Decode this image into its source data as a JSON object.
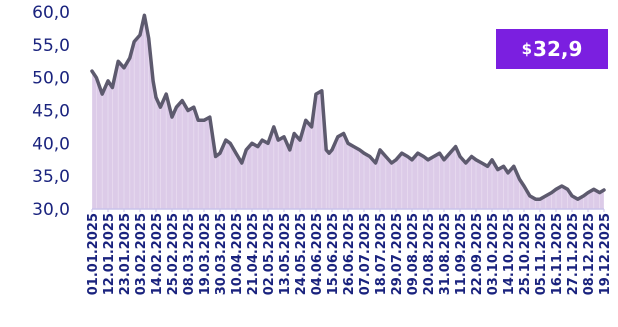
{
  "price_badge": {
    "currency": "$",
    "value": "32,9"
  },
  "chart_data": {
    "type": "area",
    "ylim": [
      30,
      60
    ],
    "yticks": [
      "30,0",
      "35,0",
      "40,0",
      "45,0",
      "50,0",
      "55,0",
      "60,0"
    ],
    "xtick_labels": [
      "01.01.2025",
      "12.01.2025",
      "23.01.2025",
      "03.02.2025",
      "14.02.2025",
      "25.02.2025",
      "08.03.2025",
      "19.03.2025",
      "30.03.2025",
      "10.04.2025",
      "21.04.2025",
      "02.05.2025",
      "13.05.2025",
      "24.05.2025",
      "04.06.2025",
      "15.06.2025",
      "26.06.2025",
      "07.07.2025",
      "18.07.2025",
      "29.07.2025",
      "09.08.2025",
      "20.08.2025",
      "31.08.2025",
      "11.09.2025",
      "22.09.2025",
      "03.10.2025",
      "14.10.2025",
      "25.10.2025",
      "05.11.2025",
      "16.11.2025",
      "27.11.2025",
      "08.12.2025",
      "19.12.2025"
    ],
    "x": [
      "2025-01-01",
      "2025-01-04",
      "2025-01-08",
      "2025-01-12",
      "2025-01-15",
      "2025-01-19",
      "2025-01-23",
      "2025-01-27",
      "2025-01-30",
      "2025-02-03",
      "2025-02-06",
      "2025-02-09",
      "2025-02-12",
      "2025-02-14",
      "2025-02-17",
      "2025-02-21",
      "2025-02-25",
      "2025-02-28",
      "2025-03-04",
      "2025-03-08",
      "2025-03-12",
      "2025-03-15",
      "2025-03-19",
      "2025-03-23",
      "2025-03-27",
      "2025-03-30",
      "2025-04-03",
      "2025-04-06",
      "2025-04-10",
      "2025-04-14",
      "2025-04-17",
      "2025-04-21",
      "2025-04-25",
      "2025-04-28",
      "2025-05-02",
      "2025-05-06",
      "2025-05-09",
      "2025-05-13",
      "2025-05-17",
      "2025-05-20",
      "2025-05-24",
      "2025-05-28",
      "2025-06-01",
      "2025-06-04",
      "2025-06-08",
      "2025-06-11",
      "2025-06-13",
      "2025-06-15",
      "2025-06-19",
      "2025-06-23",
      "2025-06-26",
      "2025-06-30",
      "2025-07-04",
      "2025-07-07",
      "2025-07-11",
      "2025-07-15",
      "2025-07-18",
      "2025-07-22",
      "2025-07-26",
      "2025-07-29",
      "2025-08-02",
      "2025-08-06",
      "2025-08-09",
      "2025-08-13",
      "2025-08-17",
      "2025-08-20",
      "2025-08-24",
      "2025-08-28",
      "2025-08-31",
      "2025-09-04",
      "2025-09-08",
      "2025-09-11",
      "2025-09-15",
      "2025-09-19",
      "2025-09-22",
      "2025-09-26",
      "2025-09-30",
      "2025-10-03",
      "2025-10-07",
      "2025-10-11",
      "2025-10-14",
      "2025-10-18",
      "2025-10-22",
      "2025-10-25",
      "2025-10-29",
      "2025-11-02",
      "2025-11-05",
      "2025-11-09",
      "2025-11-13",
      "2025-11-16",
      "2025-11-20",
      "2025-11-24",
      "2025-11-27",
      "2025-12-01",
      "2025-12-05",
      "2025-12-08",
      "2025-12-12",
      "2025-12-16",
      "2025-12-19"
    ],
    "values": [
      51.0,
      50.0,
      47.5,
      49.5,
      48.5,
      52.5,
      51.5,
      53.0,
      55.5,
      56.5,
      59.5,
      56.0,
      49.5,
      47.0,
      45.5,
      47.5,
      44.0,
      45.5,
      46.5,
      45.0,
      45.5,
      43.5,
      43.5,
      44.0,
      38.0,
      38.5,
      40.5,
      40.0,
      38.5,
      37.0,
      39.0,
      40.0,
      39.5,
      40.5,
      40.0,
      42.5,
      40.5,
      41.0,
      39.0,
      41.5,
      40.5,
      43.5,
      42.5,
      47.5,
      48.0,
      39.0,
      38.5,
      39.0,
      41.0,
      41.5,
      40.0,
      39.5,
      39.0,
      38.5,
      38.0,
      37.0,
      39.0,
      38.0,
      37.0,
      37.5,
      38.5,
      38.0,
      37.5,
      38.5,
      38.0,
      37.5,
      38.0,
      38.5,
      37.5,
      38.5,
      39.5,
      38.0,
      37.0,
      38.0,
      37.5,
      37.0,
      36.5,
      37.5,
      36.0,
      36.5,
      35.5,
      36.5,
      34.5,
      33.5,
      32.0,
      31.5,
      31.5,
      32.0,
      32.5,
      33.0,
      33.5,
      33.0,
      32.0,
      31.5,
      32.0,
      32.5,
      33.0,
      32.5,
      32.9
    ],
    "line_color": "#5d5a6e",
    "fill_color": "#dccbe8",
    "axis_color": "#1a237e",
    "badge_color": "#7b1fe0",
    "grid": false,
    "legend": "none"
  }
}
